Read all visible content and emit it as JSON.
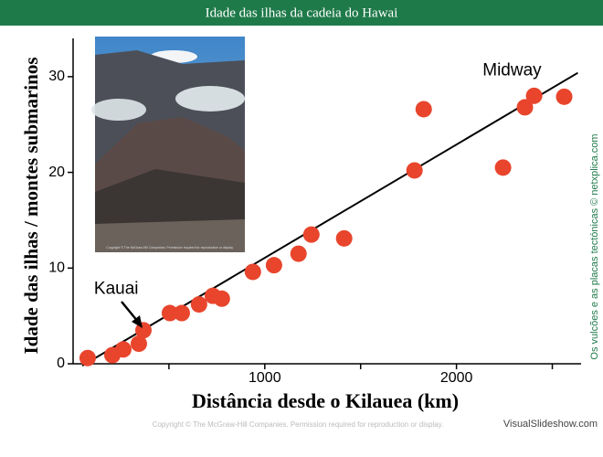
{
  "header": {
    "title": "Idade das ilhas da cadeia do Hawai"
  },
  "chart_data": {
    "type": "scatter",
    "xlabel": "Distância desde o Kilauea (km)",
    "ylabel": "Idade das ilhas / montes submarinos",
    "x": [
      76,
      205,
      262,
      343,
      367,
      505,
      567,
      657,
      729,
      776,
      938,
      1048,
      1176,
      1243,
      1414,
      1781,
      1829,
      2243,
      2357,
      2405,
      2562
    ],
    "values": [
      0.6,
      0.9,
      1.5,
      2.1,
      3.5,
      5.3,
      5.3,
      6.2,
      7.1,
      6.8,
      9.6,
      10.3,
      11.5,
      13.5,
      13.1,
      20.2,
      26.6,
      20.5,
      26.8,
      28.0,
      27.9
    ],
    "color": "#e8452c",
    "fit_line": {
      "x": [
        48,
        2633
      ],
      "y": [
        -0.2,
        30.4
      ],
      "color": "#000000"
    },
    "xlim": [
      0,
      2650
    ],
    "ylim": [
      0,
      34
    ],
    "xticks": [
      1000,
      2000
    ],
    "xminor_ticks": [
      500,
      1500,
      2500
    ],
    "yticks": [
      0,
      10,
      20,
      30
    ],
    "annotations": [
      {
        "text": "Midway",
        "x": 2290,
        "y": 30.6
      },
      {
        "text": "Kauai",
        "x": 225,
        "y": 7.8
      }
    ],
    "photo_caption": "Copyright © The McGraw-Hill Companies. Permission required for reproduction or display."
  },
  "footer": {
    "copyright": "Copyright © The McGraw-Hill Companies. Permission required for reproduction or display.",
    "brand": "VisualSlideshow.com",
    "side_note": "Os vulcões e as placas tectónicas © netxplica.com"
  }
}
